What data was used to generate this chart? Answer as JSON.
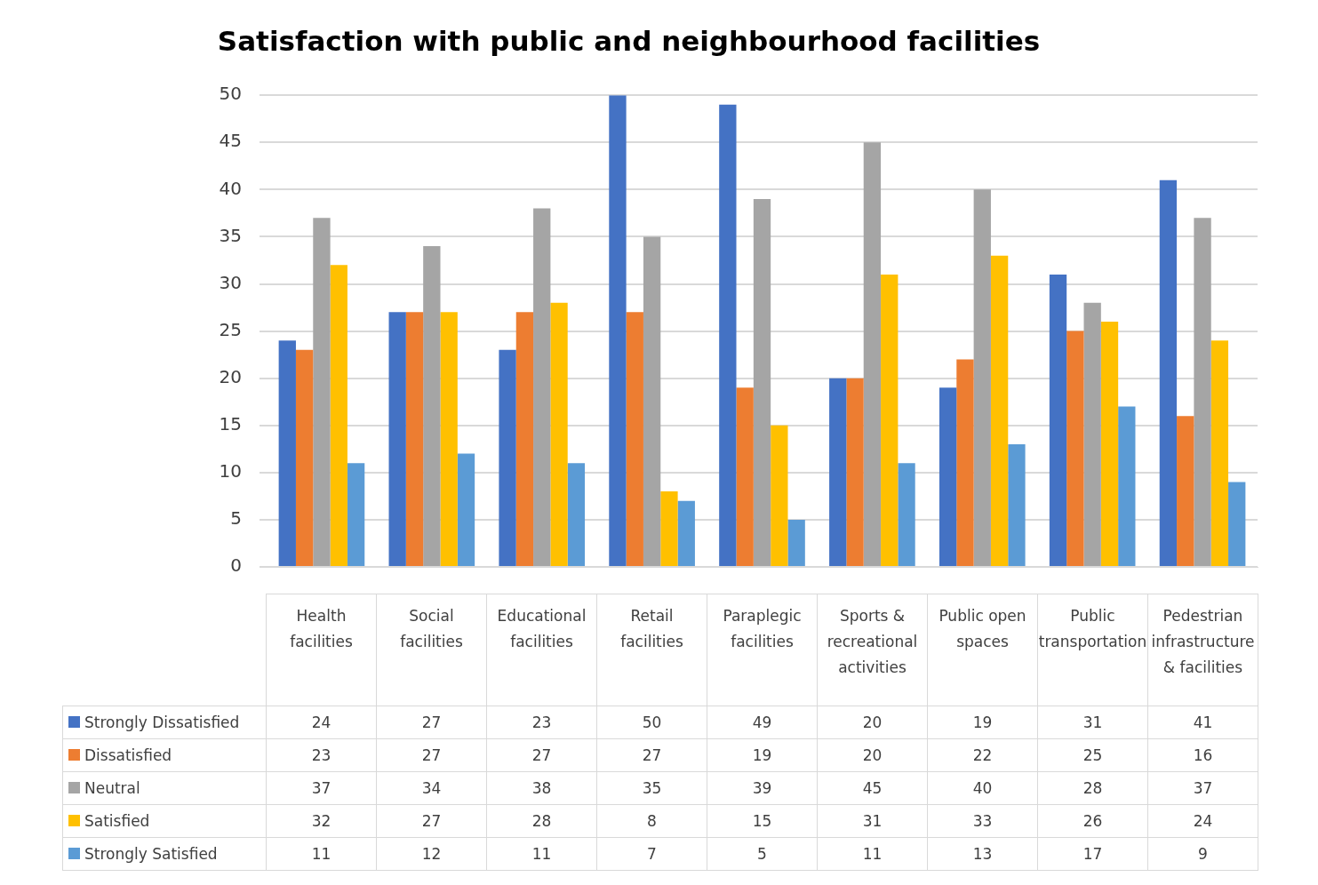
{
  "chart_data": {
    "type": "bar",
    "title": "Satisfaction with public and neighbourhood facilities",
    "categories": [
      "Health facilities",
      "Social facilities",
      "Educational facilities",
      "Retail facilities",
      "Paraplegic facilities",
      "Sports & recreational activities",
      "Public open spaces",
      "Public transportation",
      "Pedestrian infrastructure & facilities"
    ],
    "series": [
      {
        "name": "Strongly Dissatisfied",
        "color": "#4472c4",
        "values": [
          24,
          27,
          23,
          50,
          49,
          20,
          19,
          31,
          41
        ]
      },
      {
        "name": "Dissatisfied",
        "color": "#ed7d31",
        "values": [
          23,
          27,
          27,
          27,
          19,
          20,
          22,
          25,
          16
        ]
      },
      {
        "name": "Neutral",
        "color": "#a5a5a5",
        "values": [
          37,
          34,
          38,
          35,
          39,
          45,
          40,
          28,
          37
        ]
      },
      {
        "name": "Satisfied",
        "color": "#ffc000",
        "values": [
          32,
          27,
          28,
          8,
          15,
          31,
          33,
          26,
          24
        ]
      },
      {
        "name": "Strongly Satisfied",
        "color": "#5b9bd5",
        "values": [
          11,
          12,
          11,
          7,
          5,
          11,
          13,
          17,
          9
        ]
      }
    ],
    "ylim": [
      0,
      50
    ],
    "yticks": [
      0,
      5,
      10,
      15,
      20,
      25,
      30,
      35,
      40,
      45,
      50
    ],
    "grid": "y",
    "data_labels": true,
    "legend": "bottom left"
  }
}
